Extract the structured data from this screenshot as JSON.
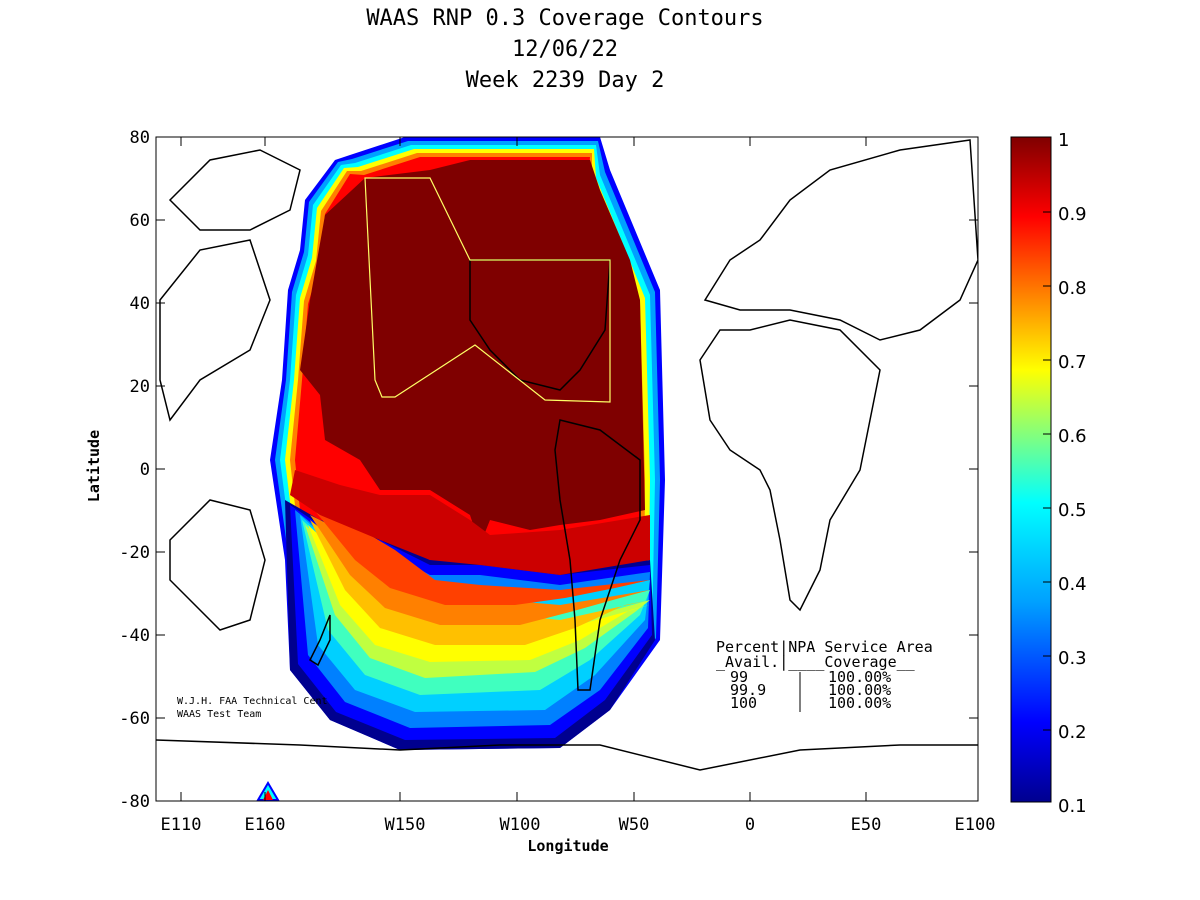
{
  "title": {
    "line1": "WAAS RNP 0.3 Coverage Contours",
    "line2": "12/06/22",
    "line3": "Week 2239 Day 2"
  },
  "axes": {
    "xlabel": "Longitude",
    "ylabel": "Latitude",
    "x_ticks": [
      "E110",
      "E160",
      "W150",
      "W100",
      "W50",
      "0",
      "E50",
      "E100"
    ],
    "y_ticks": [
      "80",
      "60",
      "40",
      "20",
      "0",
      "-20",
      "-40",
      "-60",
      "-80"
    ]
  },
  "colorbar": {
    "ticks": [
      "1",
      "0.9",
      "0.8",
      "0.7",
      "0.6",
      "0.5",
      "0.4",
      "0.3",
      "0.2",
      "0.1"
    ],
    "range": [
      0.1,
      1
    ],
    "colors": [
      "#7f0000",
      "#ff0000",
      "#ff8000",
      "#ffff00",
      "#80ff80",
      "#00ffff",
      "#0080ff",
      "#0000ff",
      "#00008f"
    ]
  },
  "credits": {
    "line1": "W.J.H. FAA Technical Cent",
    "line2": "WAAS Test Team"
  },
  "coverage_table": {
    "header1": "Percent|NPA Service Area",
    "header2": "_Avail.|____Coverage__",
    "rows": [
      {
        "avail": "99",
        "coverage": "100.00%"
      },
      {
        "avail": "99.9",
        "coverage": "100.00%"
      },
      {
        "avail": "100",
        "coverage": "100.00%"
      }
    ]
  },
  "colors": {
    "yellow_service_boundary": "#ffff66"
  }
}
